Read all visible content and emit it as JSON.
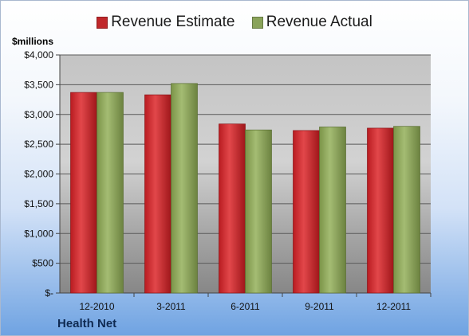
{
  "chart_data": {
    "type": "bar",
    "categories": [
      "12-2010",
      "3-2011",
      "6-2011",
      "9-2011",
      "12-2011"
    ],
    "series": [
      {
        "name": "Revenue Estimate",
        "color": "#c0282b",
        "values": [
          3370,
          3330,
          2840,
          2730,
          2770
        ]
      },
      {
        "name": "Revenue Actual",
        "color": "#8aa35a",
        "values": [
          3370,
          3520,
          2740,
          2790,
          2800
        ]
      }
    ],
    "ylabel": "$millions",
    "ylim": [
      0,
      4000
    ],
    "yticks": [
      0,
      500,
      1000,
      1500,
      2000,
      2500,
      3000,
      3500,
      4000
    ],
    "ytick_labels": [
      "$-",
      "$500",
      "$1,000",
      "$1,500",
      "$2,000",
      "$2,500",
      "$3,000",
      "$3,500",
      "$4,000"
    ],
    "grid": true,
    "legend": "top"
  },
  "footer": {
    "company": "Health Net"
  }
}
